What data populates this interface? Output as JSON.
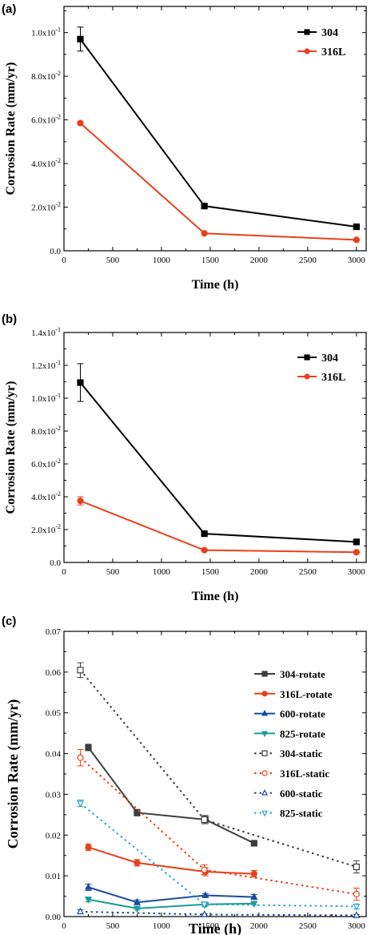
{
  "chart_data": [
    {
      "panel": "(a)",
      "type": "line",
      "xlabel": "Time (h)",
      "ylabel": "Corrosion Rate (mm/yr)",
      "xlim": [
        0,
        3100
      ],
      "ylim": [
        0,
        0.112
      ],
      "xticks": [
        0,
        500,
        1000,
        1500,
        2000,
        2500,
        3000
      ],
      "yticks": [
        0,
        0.02,
        0.04,
        0.06,
        0.08,
        0.1
      ],
      "ytick_labels": [
        {
          "base": "0.0",
          "exp": ""
        },
        {
          "base": "2.0x10",
          "exp": "-2"
        },
        {
          "base": "4.0x10",
          "exp": "-2"
        },
        {
          "base": "6.0x10",
          "exp": "-2"
        },
        {
          "base": "8.0x10",
          "exp": "-2"
        },
        {
          "base": "1.0x10",
          "exp": "-1"
        }
      ],
      "legend_position": "top-right",
      "series": [
        {
          "name": "304",
          "color": "#000000",
          "marker": "square",
          "x": [
            168,
            1440,
            3000
          ],
          "y": [
            0.097,
            0.0205,
            0.011
          ],
          "err": [
            0.0055,
            0.0005,
            0.0005
          ]
        },
        {
          "name": "316L",
          "color": "#e8401c",
          "marker": "circle",
          "x": [
            168,
            1440,
            3000
          ],
          "y": [
            0.0585,
            0.008,
            0.005
          ],
          "err": [
            0.0004,
            0.0003,
            0.0003
          ]
        }
      ]
    },
    {
      "panel": "(b)",
      "type": "line",
      "xlabel": "Time (h)",
      "ylabel": "Corrosion Rate (mm/yr)",
      "xlim": [
        0,
        3100
      ],
      "ylim": [
        0,
        0.14
      ],
      "xticks": [
        0,
        500,
        1000,
        1500,
        2000,
        2500,
        3000
      ],
      "yticks": [
        0,
        0.02,
        0.04,
        0.06,
        0.08,
        0.1,
        0.12,
        0.14
      ],
      "ytick_labels": [
        {
          "base": "0.0",
          "exp": ""
        },
        {
          "base": "2.0x10",
          "exp": "-2"
        },
        {
          "base": "4.0x10",
          "exp": "-2"
        },
        {
          "base": "6.0x10",
          "exp": "-2"
        },
        {
          "base": "8.0x10",
          "exp": "-2"
        },
        {
          "base": "1.0x10",
          "exp": "-1"
        },
        {
          "base": "1.2x10",
          "exp": "-1"
        },
        {
          "base": "1.4x10",
          "exp": "-1"
        }
      ],
      "legend_position": "top-right",
      "series": [
        {
          "name": "304",
          "color": "#000000",
          "marker": "square",
          "x": [
            168,
            1440,
            3000
          ],
          "y": [
            0.1095,
            0.0175,
            0.0125
          ],
          "err": [
            0.0115,
            0.0005,
            0.0005
          ]
        },
        {
          "name": "316L",
          "color": "#e8401c",
          "marker": "circle",
          "x": [
            168,
            1440,
            3000
          ],
          "y": [
            0.0375,
            0.0075,
            0.0062
          ],
          "err": [
            0.0025,
            0.0005,
            0.0004
          ]
        }
      ]
    },
    {
      "panel": "(c)",
      "type": "line",
      "xlabel": "Time (h)",
      "ylabel": "Corrosion Rate (mm/yr)",
      "xlim": [
        0,
        3100
      ],
      "ylim": [
        0,
        0.07
      ],
      "xticks": [
        0,
        500,
        1000,
        1500,
        2000,
        2500,
        3000
      ],
      "yticks": [
        0,
        0.01,
        0.02,
        0.03,
        0.04,
        0.05,
        0.06,
        0.07
      ],
      "ytick_labels": [
        {
          "base": "0.00",
          "exp": ""
        },
        {
          "base": "0.01",
          "exp": ""
        },
        {
          "base": "0.02",
          "exp": ""
        },
        {
          "base": "0.03",
          "exp": ""
        },
        {
          "base": "0.04",
          "exp": ""
        },
        {
          "base": "0.05",
          "exp": ""
        },
        {
          "base": "0.06",
          "exp": ""
        },
        {
          "base": "0.07",
          "exp": ""
        }
      ],
      "legend_position": "top-right",
      "series": [
        {
          "name": "304-rotate",
          "color": "#3d3d3d",
          "marker": "square",
          "filled": true,
          "dashed": false,
          "x": [
            250,
            750,
            1450,
            1950
          ],
          "y": [
            0.0415,
            0.0255,
            0.0238,
            0.018
          ],
          "err": [
            0.0008,
            0.0008,
            0.001,
            0.0004
          ]
        },
        {
          "name": "316L-rotate",
          "color": "#e8401c",
          "marker": "circle",
          "filled": true,
          "dashed": false,
          "x": [
            250,
            750,
            1450,
            1950
          ],
          "y": [
            0.017,
            0.0132,
            0.011,
            0.0105
          ],
          "err": [
            0.0008,
            0.0008,
            0.001,
            0.0008
          ]
        },
        {
          "name": "600-rotate",
          "color": "#1a4aa0",
          "marker": "triangle-up",
          "filled": true,
          "dashed": false,
          "x": [
            250,
            750,
            1450,
            1950
          ],
          "y": [
            0.0072,
            0.0035,
            0.0052,
            0.0048
          ],
          "err": [
            0.0008,
            0.0006,
            0.0004,
            0.0006
          ]
        },
        {
          "name": "825-rotate",
          "color": "#1a9a9a",
          "marker": "triangle-down",
          "filled": true,
          "dashed": false,
          "x": [
            250,
            750,
            1450,
            1950
          ],
          "y": [
            0.0042,
            0.002,
            0.003,
            0.0032
          ],
          "err": [
            0.0006,
            0.0004,
            0.0004,
            0.0004
          ]
        },
        {
          "name": "304-static",
          "color": "#3d3d3d",
          "marker": "square",
          "filled": false,
          "dashed": true,
          "x": [
            168,
            1440,
            3000
          ],
          "y": [
            0.0605,
            0.0238,
            0.0122
          ],
          "err": [
            0.0018,
            0.001,
            0.0015
          ]
        },
        {
          "name": "316L-static",
          "color": "#e8401c",
          "marker": "circle",
          "filled": false,
          "dashed": true,
          "x": [
            168,
            1440,
            3000
          ],
          "y": [
            0.039,
            0.0115,
            0.0055
          ],
          "err": [
            0.002,
            0.0012,
            0.0015
          ]
        },
        {
          "name": "600-static",
          "color": "#1a4aa0",
          "marker": "triangle-up",
          "filled": false,
          "dashed": true,
          "x": [
            168,
            1440,
            3000
          ],
          "y": [
            0.0012,
            0.0005,
            0.0003
          ],
          "err": [
            0.0005,
            0.0002,
            0.0002
          ]
        },
        {
          "name": "825-static",
          "color": "#2ea5c8",
          "marker": "triangle-down",
          "filled": false,
          "dashed": true,
          "x": [
            168,
            1440,
            3000
          ],
          "y": [
            0.0278,
            0.003,
            0.0025
          ],
          "err": [
            0.0008,
            0.0006,
            0.0006
          ]
        }
      ]
    }
  ]
}
